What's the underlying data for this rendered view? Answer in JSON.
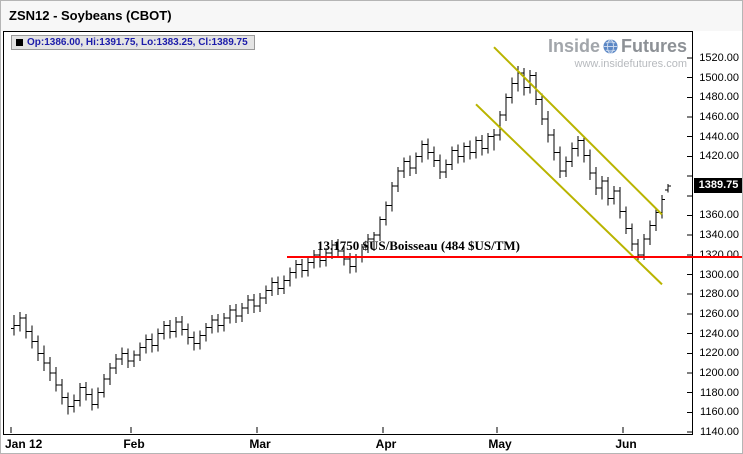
{
  "header": {
    "title": "ZSN12 - Soybeans (CBOT)"
  },
  "info_bar": {
    "text": "Op:1386.00, Hi:1391.75, Lo:1383.25, Cl:1389.75"
  },
  "watermark": {
    "brand_left": "Inside",
    "brand_right": "Futures",
    "url": "www.insidefutures.com"
  },
  "price_tag": {
    "value": "1389.75"
  },
  "colors": {
    "bar": "#000000",
    "channel": "#b9b400",
    "support": "#ff0000",
    "info_text": "#1c1caa"
  },
  "chart_data": {
    "type": "bar",
    "subtype": "ohlc-daily",
    "title": "ZSN12 - Soybeans (CBOT)",
    "last_price": 1389.75,
    "ohlc_latest": {
      "open": 1386.0,
      "high": 1391.75,
      "low": 1383.25,
      "close": 1389.75
    },
    "y_axis": {
      "min": 1140,
      "max": 1520,
      "step": 20,
      "format": "0.00",
      "side": "right"
    },
    "x_axis": {
      "labels": [
        {
          "label": "Jan 12",
          "index": 0
        },
        {
          "label": "Feb",
          "index": 20
        },
        {
          "label": "Mar",
          "index": 41
        },
        {
          "label": "Apr",
          "index": 62
        },
        {
          "label": "May",
          "index": 81
        },
        {
          "label": "Jun",
          "index": 102
        }
      ]
    },
    "bars": [
      [
        1245,
        1259,
        1238,
        1248
      ],
      [
        1248,
        1262,
        1242,
        1256
      ],
      [
        1256,
        1260,
        1235,
        1242
      ],
      [
        1242,
        1248,
        1225,
        1232
      ],
      [
        1232,
        1238,
        1212,
        1220
      ],
      [
        1220,
        1228,
        1202,
        1210
      ],
      [
        1210,
        1216,
        1192,
        1200
      ],
      [
        1200,
        1206,
        1181,
        1188
      ],
      [
        1188,
        1194,
        1168,
        1175
      ],
      [
        1175,
        1180,
        1158,
        1166
      ],
      [
        1166,
        1178,
        1160,
        1172
      ],
      [
        1172,
        1190,
        1166,
        1185
      ],
      [
        1185,
        1191,
        1172,
        1178
      ],
      [
        1178,
        1184,
        1162,
        1168
      ],
      [
        1168,
        1185,
        1164,
        1180
      ],
      [
        1180,
        1199,
        1175,
        1194
      ],
      [
        1194,
        1210,
        1188,
        1205
      ],
      [
        1205,
        1219,
        1199,
        1214
      ],
      [
        1214,
        1226,
        1208,
        1220
      ],
      [
        1220,
        1225,
        1205,
        1212
      ],
      [
        1212,
        1223,
        1206,
        1218
      ],
      [
        1218,
        1231,
        1212,
        1226
      ],
      [
        1226,
        1239,
        1220,
        1234
      ],
      [
        1234,
        1240,
        1221,
        1228
      ],
      [
        1228,
        1245,
        1222,
        1240
      ],
      [
        1240,
        1253,
        1234,
        1248
      ],
      [
        1248,
        1254,
        1235,
        1242
      ],
      [
        1242,
        1257,
        1236,
        1252
      ],
      [
        1252,
        1258,
        1238,
        1244
      ],
      [
        1244,
        1250,
        1229,
        1236
      ],
      [
        1236,
        1242,
        1223,
        1230
      ],
      [
        1230,
        1243,
        1224,
        1238
      ],
      [
        1238,
        1251,
        1232,
        1246
      ],
      [
        1246,
        1259,
        1240,
        1254
      ],
      [
        1254,
        1260,
        1241,
        1248
      ],
      [
        1248,
        1261,
        1242,
        1256
      ],
      [
        1256,
        1269,
        1250,
        1264
      ],
      [
        1264,
        1270,
        1251,
        1258
      ],
      [
        1258,
        1271,
        1252,
        1266
      ],
      [
        1266,
        1279,
        1260,
        1274
      ],
      [
        1274,
        1280,
        1261,
        1268
      ],
      [
        1268,
        1281,
        1262,
        1276
      ],
      [
        1276,
        1289,
        1270,
        1284
      ],
      [
        1284,
        1297,
        1278,
        1292
      ],
      [
        1292,
        1298,
        1279,
        1286
      ],
      [
        1286,
        1299,
        1280,
        1294
      ],
      [
        1294,
        1307,
        1288,
        1302
      ],
      [
        1302,
        1315,
        1296,
        1310
      ],
      [
        1310,
        1316,
        1297,
        1304
      ],
      [
        1304,
        1317,
        1298,
        1312
      ],
      [
        1312,
        1325,
        1306,
        1320
      ],
      [
        1320,
        1326,
        1307,
        1314
      ],
      [
        1314,
        1327,
        1308,
        1322
      ],
      [
        1322,
        1335,
        1316,
        1330
      ],
      [
        1330,
        1336,
        1317,
        1324
      ],
      [
        1324,
        1330,
        1309,
        1316
      ],
      [
        1316,
        1322,
        1301,
        1308
      ],
      [
        1308,
        1321,
        1302,
        1318
      ],
      [
        1318,
        1331,
        1312,
        1328
      ],
      [
        1328,
        1341,
        1322,
        1336
      ],
      [
        1336,
        1343,
        1324,
        1340
      ],
      [
        1340,
        1359,
        1334,
        1356
      ],
      [
        1356,
        1374,
        1350,
        1370
      ],
      [
        1370,
        1394,
        1364,
        1390
      ],
      [
        1390,
        1409,
        1384,
        1405
      ],
      [
        1405,
        1419,
        1398,
        1415
      ],
      [
        1415,
        1421,
        1400,
        1408
      ],
      [
        1408,
        1424,
        1402,
        1420
      ],
      [
        1420,
        1436,
        1414,
        1432
      ],
      [
        1432,
        1438,
        1417,
        1424
      ],
      [
        1424,
        1430,
        1409,
        1416
      ],
      [
        1416,
        1422,
        1397,
        1404
      ],
      [
        1404,
        1417,
        1398,
        1412
      ],
      [
        1412,
        1430,
        1406,
        1426
      ],
      [
        1426,
        1432,
        1413,
        1420
      ],
      [
        1420,
        1434,
        1414,
        1430
      ],
      [
        1430,
        1436,
        1417,
        1424
      ],
      [
        1424,
        1440,
        1418,
        1436
      ],
      [
        1436,
        1442,
        1421,
        1428
      ],
      [
        1428,
        1444,
        1423,
        1440
      ],
      [
        1440,
        1448,
        1426,
        1442
      ],
      [
        1442,
        1466,
        1436,
        1462
      ],
      [
        1462,
        1484,
        1456,
        1480
      ],
      [
        1480,
        1500,
        1474,
        1494
      ],
      [
        1494,
        1512,
        1486,
        1505
      ],
      [
        1505,
        1510,
        1482,
        1490
      ],
      [
        1490,
        1508,
        1484,
        1502
      ],
      [
        1502,
        1506,
        1472,
        1478
      ],
      [
        1478,
        1484,
        1452,
        1458
      ],
      [
        1458,
        1466,
        1434,
        1442
      ],
      [
        1442,
        1448,
        1416,
        1424
      ],
      [
        1424,
        1430,
        1398,
        1405
      ],
      [
        1405,
        1420,
        1399,
        1415
      ],
      [
        1415,
        1434,
        1409,
        1428
      ],
      [
        1428,
        1441,
        1420,
        1436
      ],
      [
        1436,
        1440,
        1414,
        1421
      ],
      [
        1421,
        1427,
        1396,
        1403
      ],
      [
        1403,
        1409,
        1381,
        1388
      ],
      [
        1388,
        1400,
        1376,
        1395
      ],
      [
        1395,
        1399,
        1370,
        1377
      ],
      [
        1377,
        1390,
        1371,
        1385
      ],
      [
        1385,
        1389,
        1357,
        1364
      ],
      [
        1364,
        1369,
        1341,
        1347
      ],
      [
        1347,
        1352,
        1324,
        1331
      ],
      [
        1331,
        1336,
        1314,
        1320
      ],
      [
        1320,
        1341,
        1315,
        1336
      ],
      [
        1336,
        1355,
        1330,
        1350
      ],
      [
        1350,
        1368,
        1344,
        1363
      ],
      [
        1363,
        1381,
        1357,
        1376
      ],
      [
        1386,
        1391.75,
        1383.25,
        1389.75
      ]
    ],
    "trend_lines": [
      {
        "name": "descending-channel-upper",
        "from": {
          "index": 80,
          "price": 1531
        },
        "to": {
          "index": 108,
          "price": 1361
        }
      },
      {
        "name": "descending-channel-lower",
        "from": {
          "index": 77,
          "price": 1473
        },
        "to": {
          "index": 108,
          "price": 1290
        }
      }
    ],
    "support_line": {
      "price": 1317.5,
      "start_index": 46,
      "extends_past_axis": true,
      "label": "13.1750 $US/Boisseau (484 $US/TM)"
    },
    "legend_position": "none",
    "grid": false
  }
}
